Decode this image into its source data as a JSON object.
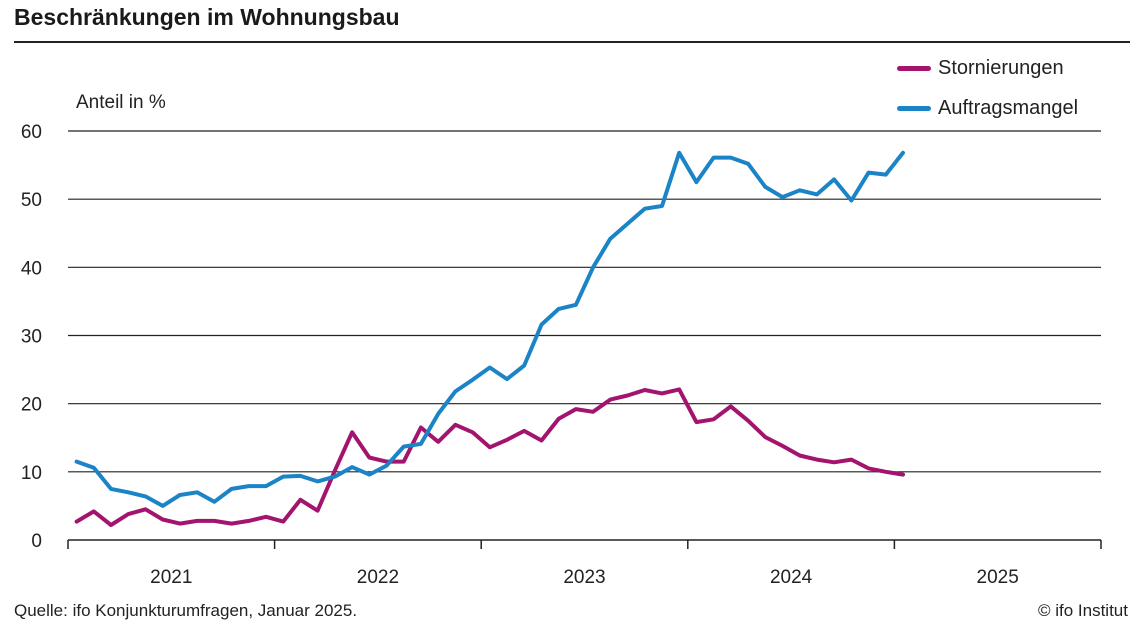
{
  "header": {
    "title": "Beschränkungen im Wohnungsbau"
  },
  "footer": {
    "source": "Quelle: ifo Konjunkturumfragen, Januar 2025.",
    "copyright": "© ifo Institut"
  },
  "colors": {
    "Stornierungen": "#a3146e",
    "Auftragsmangel": "#1b84c6",
    "grid": "#222222"
  },
  "chart_data": {
    "type": "line",
    "title": "Beschränkungen im Wohnungsbau",
    "ylabel": "Anteil in %",
    "xlabel": "",
    "ylim": [
      0,
      60
    ],
    "yticks": [
      0,
      10,
      20,
      30,
      40,
      50,
      60
    ],
    "year_labels": [
      "2021",
      "2022",
      "2023",
      "2024",
      "2025"
    ],
    "x_unit": "month",
    "x_start": "2021-01",
    "x_end": "2025-12",
    "grid": true,
    "legend_position": "top-right",
    "x": [
      "2021-01",
      "2021-02",
      "2021-03",
      "2021-04",
      "2021-05",
      "2021-06",
      "2021-07",
      "2021-08",
      "2021-09",
      "2021-10",
      "2021-11",
      "2021-12",
      "2022-01",
      "2022-02",
      "2022-03",
      "2022-04",
      "2022-05",
      "2022-06",
      "2022-07",
      "2022-08",
      "2022-09",
      "2022-10",
      "2022-11",
      "2022-12",
      "2023-01",
      "2023-02",
      "2023-03",
      "2023-04",
      "2023-05",
      "2023-06",
      "2023-07",
      "2023-08",
      "2023-09",
      "2023-10",
      "2023-11",
      "2023-12",
      "2024-01",
      "2024-02",
      "2024-03",
      "2024-04",
      "2024-05",
      "2024-06",
      "2024-07",
      "2024-08",
      "2024-09",
      "2024-10",
      "2024-11",
      "2024-12",
      "2025-01"
    ],
    "series": [
      {
        "name": "Stornierungen",
        "values": [
          2.7,
          4.2,
          2.2,
          3.8,
          4.5,
          3.0,
          2.4,
          2.8,
          2.8,
          2.4,
          2.8,
          3.4,
          2.7,
          5.9,
          4.3,
          10.2,
          15.8,
          12.1,
          11.5,
          11.5,
          16.5,
          14.4,
          16.9,
          15.8,
          13.6,
          14.7,
          16.0,
          14.6,
          17.8,
          19.2,
          18.8,
          20.6,
          21.2,
          22.0,
          21.5,
          22.1,
          17.3,
          17.7,
          19.6,
          17.5,
          15.1,
          13.8,
          12.4,
          11.8,
          11.4,
          11.8,
          10.5,
          10.0,
          9.6
        ]
      },
      {
        "name": "Auftragsmangel",
        "values": [
          11.5,
          10.6,
          7.5,
          7.0,
          6.4,
          5.0,
          6.6,
          7.0,
          5.6,
          7.5,
          7.9,
          7.9,
          9.3,
          9.4,
          8.6,
          9.3,
          10.7,
          9.6,
          10.9,
          13.7,
          14.1,
          18.5,
          21.8,
          23.5,
          25.3,
          23.6,
          25.6,
          31.6,
          33.9,
          34.5,
          40.0,
          44.2,
          46.4,
          48.6,
          49.0,
          56.8,
          52.5,
          56.1,
          56.1,
          55.2,
          51.8,
          50.3,
          51.3,
          50.7,
          52.9,
          49.8,
          53.9,
          53.6,
          56.8
        ]
      }
    ]
  }
}
